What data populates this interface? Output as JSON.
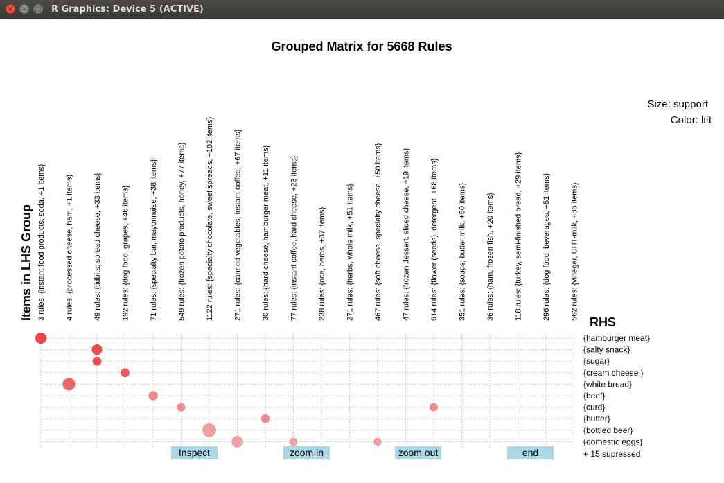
{
  "window": {
    "title": "R Graphics: Device 5 (ACTIVE)",
    "close_glyph": "×",
    "minimize_glyph": "–",
    "maximize_glyph": "□"
  },
  "chart_data": {
    "type": "scatter",
    "subtype": "grouped matrix (balloon plot)",
    "title": "Grouped Matrix for 5668 Rules",
    "xlabel": "Items in LHS Group",
    "ylabel": "RHS",
    "size_legend": "Size: support",
    "color_legend": "Color: lift",
    "grid": true,
    "lhs_groups": [
      "3 rules: {instant food products, soda, +1 items}",
      "4 rules: {processed cheese, ham, +1 items}",
      "49 rules: {tidbits, spread cheese, +33 items}",
      "192 rules: {dog food, grapes, +46 items}",
      "71 rules: {specialty bar, mayonnaise, +38 items}",
      "549 rules: {frozen potato products, honey, +77 items}",
      "1122 rules: {specialty chocolate, sweet spreads, +102 items}",
      "271 rules: {canned vegetables, instant coffee, +67 items}",
      "30 rules: {hard cheese, hamburger meat, +11 items}",
      "77 rules: {instant coffee, hard cheese, +23 items}",
      "238 rules: {rice, herbs, +37 items}",
      "271 rules: {herbs, whole milk, +51 items}",
      "467 rules: {soft cheese, specialty cheese, +50 items}",
      "47 rules: {frozen dessert, sliced cheese, +19 items}",
      "914 rules: {flower (seeds), detergent, +68 items}",
      "351 rules: {soups, butter milk, +50 items}",
      "36 rules: {ham, frozen fish, +20 items}",
      "118 rules: {turkey, semi-finished bread, +29 items}",
      "296 rules: {dog food, beverages, +51 items}",
      "562 rules: {vinegar, UHT-milk, +86 items}"
    ],
    "rhs_items": [
      "{hamburger meat}",
      "{salty snack}",
      "{sugar}",
      "{cream cheese }",
      "{white bread}",
      "{beef}",
      "{curd}",
      "{butter}",
      "{bottled beer}",
      "{domestic eggs}"
    ],
    "suppressed_note": "+ 15 supressed",
    "points": [
      {
        "lhs": 0,
        "rhs": 0,
        "support": 0.5,
        "lift": 1.0
      },
      {
        "lhs": 2,
        "rhs": 1,
        "support": 0.4,
        "lift": 0.95
      },
      {
        "lhs": 2,
        "rhs": 2,
        "support": 0.2,
        "lift": 0.95
      },
      {
        "lhs": 3,
        "rhs": 3,
        "support": 0.2,
        "lift": 0.85
      },
      {
        "lhs": 1,
        "rhs": 4,
        "support": 0.75,
        "lift": 0.75
      },
      {
        "lhs": 4,
        "rhs": 5,
        "support": 0.25,
        "lift": 0.5
      },
      {
        "lhs": 5,
        "rhs": 6,
        "support": 0.15,
        "lift": 0.45
      },
      {
        "lhs": 14,
        "rhs": 6,
        "support": 0.15,
        "lift": 0.45
      },
      {
        "lhs": 8,
        "rhs": 7,
        "support": 0.2,
        "lift": 0.45
      },
      {
        "lhs": 6,
        "rhs": 8,
        "support": 1.0,
        "lift": 0.3
      },
      {
        "lhs": 7,
        "rhs": 9,
        "support": 0.55,
        "lift": 0.3
      },
      {
        "lhs": 9,
        "rhs": 9,
        "support": 0.15,
        "lift": 0.3
      },
      {
        "lhs": 12,
        "rhs": 9,
        "support": 0.12,
        "lift": 0.3
      }
    ],
    "colors": {
      "high_lift": "#e8464a",
      "low_lift": "#f2c9cb",
      "button_bg": "#add8e6",
      "grid": "#c8c8c8"
    }
  },
  "buttons": [
    {
      "label": "Inspect"
    },
    {
      "label": "zoom in"
    },
    {
      "label": "zoom out"
    },
    {
      "label": "end"
    }
  ]
}
